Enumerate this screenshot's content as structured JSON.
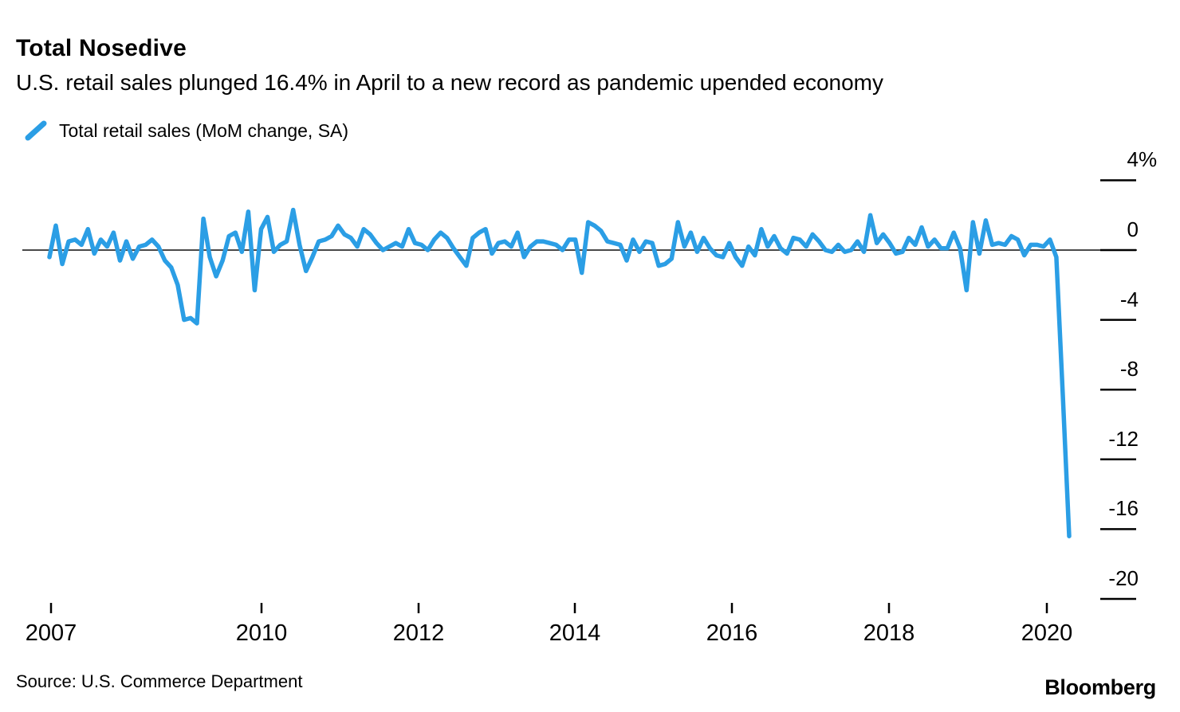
{
  "header": {
    "title": "Total Nosedive",
    "subtitle": "U.S. retail sales plunged 16.4% in April to a new record as pandemic upended economy"
  },
  "footer": {
    "source": "Source: U.S. Commerce Department",
    "brand": "Bloomberg"
  },
  "colors": {
    "line": "#2B9EE5",
    "zero_line": "#4A4A4A",
    "tick": "#000000",
    "text": "#000000",
    "background": "#FFFFFF"
  },
  "chart_data": {
    "type": "line",
    "title": "Total Nosedive",
    "series_name": "Total retail sales (MoM change, SA)",
    "unit": "%",
    "frequency": "monthly",
    "x_start_month": "2007-01",
    "x_end_month": "2020-04",
    "ylim": [
      -20,
      4
    ],
    "y_ticks": [
      4,
      0,
      -4,
      -8,
      -12,
      -16,
      -20
    ],
    "y_tick_labels": [
      "4%",
      "0",
      "-4",
      "-8",
      "-12",
      "-16",
      "-20"
    ],
    "x_tick_years": [
      "2007",
      "2010",
      "2012",
      "2014",
      "2016",
      "2018",
      "2020"
    ],
    "legend_position": "top-left",
    "grid": "off",
    "zero_line": true,
    "y_axis_side": "right",
    "last_point": {
      "month": "2020-04",
      "value": -16.4
    },
    "values": [
      -0.4,
      1.4,
      -0.8,
      0.5,
      0.6,
      0.3,
      1.2,
      -0.2,
      0.6,
      0.2,
      1.0,
      -0.6,
      0.5,
      -0.5,
      0.2,
      0.3,
      0.6,
      0.2,
      -0.6,
      -1.0,
      -2.0,
      -4.0,
      -3.9,
      -4.2,
      1.8,
      -0.4,
      -1.5,
      -0.6,
      0.8,
      1.0,
      -0.1,
      2.2,
      -2.3,
      1.2,
      1.9,
      -0.1,
      0.3,
      0.5,
      2.3,
      0.3,
      -1.2,
      -0.4,
      0.5,
      0.6,
      0.8,
      1.4,
      0.9,
      0.7,
      0.2,
      1.2,
      0.9,
      0.4,
      0.0,
      0.2,
      0.4,
      0.2,
      1.2,
      0.4,
      0.3,
      0.0,
      0.6,
      1.0,
      0.7,
      0.1,
      -0.4,
      -0.9,
      0.7,
      1.0,
      1.2,
      -0.2,
      0.4,
      0.5,
      0.2,
      1.0,
      -0.4,
      0.2,
      0.5,
      0.5,
      0.4,
      0.3,
      0.0,
      0.6,
      0.6,
      -1.3,
      1.6,
      1.4,
      1.1,
      0.5,
      0.4,
      0.3,
      -0.6,
      0.6,
      -0.1,
      0.5,
      0.4,
      -0.9,
      -0.8,
      -0.5,
      1.6,
      0.2,
      1.0,
      -0.1,
      0.7,
      0.1,
      -0.3,
      -0.4,
      0.4,
      -0.4,
      -0.9,
      0.2,
      -0.3,
      1.2,
      0.2,
      0.8,
      0.1,
      -0.2,
      0.7,
      0.6,
      0.2,
      0.9,
      0.5,
      0.0,
      -0.1,
      0.3,
      -0.1,
      0.0,
      0.5,
      -0.1,
      2.0,
      0.4,
      0.9,
      0.4,
      -0.2,
      -0.1,
      0.7,
      0.3,
      1.3,
      0.2,
      0.6,
      0.1,
      0.1,
      1.0,
      0.1,
      -2.3,
      1.6,
      -0.2,
      1.7,
      0.3,
      0.4,
      0.3,
      0.8,
      0.6,
      -0.3,
      0.3,
      0.3,
      0.2,
      0.6,
      -0.4,
      -8.3,
      -16.4
    ]
  }
}
